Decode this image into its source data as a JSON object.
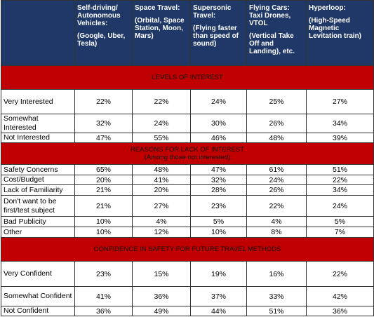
{
  "header": {
    "columns": [
      {
        "title": "Self-driving/ Autonomous Vehicles:",
        "detail": "(Google, Uber, Tesla)"
      },
      {
        "title": "Space Travel:",
        "detail": "(Orbital, Space Station, Moon, Mars)"
      },
      {
        "title": "Supersonic Travel:",
        "detail": "(Flying faster than speed of sound)"
      },
      {
        "title": "Flying Cars: Taxi Drones, VTOL",
        "detail": "(Vertical Take Off and Landing), etc."
      },
      {
        "title": "Hyperloop:",
        "detail": "(High-Speed Magnetic Levitation train)"
      }
    ]
  },
  "sections": [
    {
      "title": "LEVELS OF INTEREST",
      "rows": [
        {
          "label": "Very Interested",
          "cells": [
            "22%",
            "22%",
            "24%",
            "25%",
            "27%"
          ]
        },
        {
          "label": "Somewhat Interested",
          "cells": [
            "32%",
            "24%",
            "30%",
            "26%",
            "34%"
          ]
        },
        {
          "label": "Not Interested",
          "cells": [
            "47%",
            "55%",
            "46%",
            "48%",
            "39%"
          ]
        }
      ]
    },
    {
      "title": "REASONS FOR LACK OF INTEREST",
      "subtitle": "(Among those not interested)",
      "rows": [
        {
          "label": "Safety Concerns",
          "cells": [
            "65%",
            "48%",
            "47%",
            "61%",
            "51%"
          ]
        },
        {
          "label": "Cost/Budget",
          "cells": [
            "20%",
            "41%",
            "32%",
            "24%",
            "22%"
          ]
        },
        {
          "label": "Lack of Familiarity",
          "cells": [
            "21%",
            "20%",
            "28%",
            "26%",
            "34%"
          ]
        },
        {
          "label": "Don't want to be first/test subject",
          "cells": [
            "21%",
            "27%",
            "23%",
            "22%",
            "24%"
          ]
        },
        {
          "label": "Bad Publicity",
          "cells": [
            "10%",
            "4%",
            "5%",
            "4%",
            "5%"
          ]
        },
        {
          "label": "Other",
          "cells": [
            "10%",
            "12%",
            "10%",
            "8%",
            "7%"
          ]
        }
      ]
    },
    {
      "title": "CONFIDENCE IN SAFETY FOR FUTURE TRAVEL METHODS",
      "rows": [
        {
          "label": "Very Confident",
          "cells": [
            "23%",
            "15%",
            "19%",
            "16%",
            "22%"
          ]
        },
        {
          "label": "Somewhat Confident",
          "cells": [
            "41%",
            "36%",
            "37%",
            "33%",
            "42%"
          ]
        },
        {
          "label": "Not Confident",
          "cells": [
            "36%",
            "49%",
            "44%",
            "51%",
            "36%"
          ]
        }
      ]
    }
  ]
}
